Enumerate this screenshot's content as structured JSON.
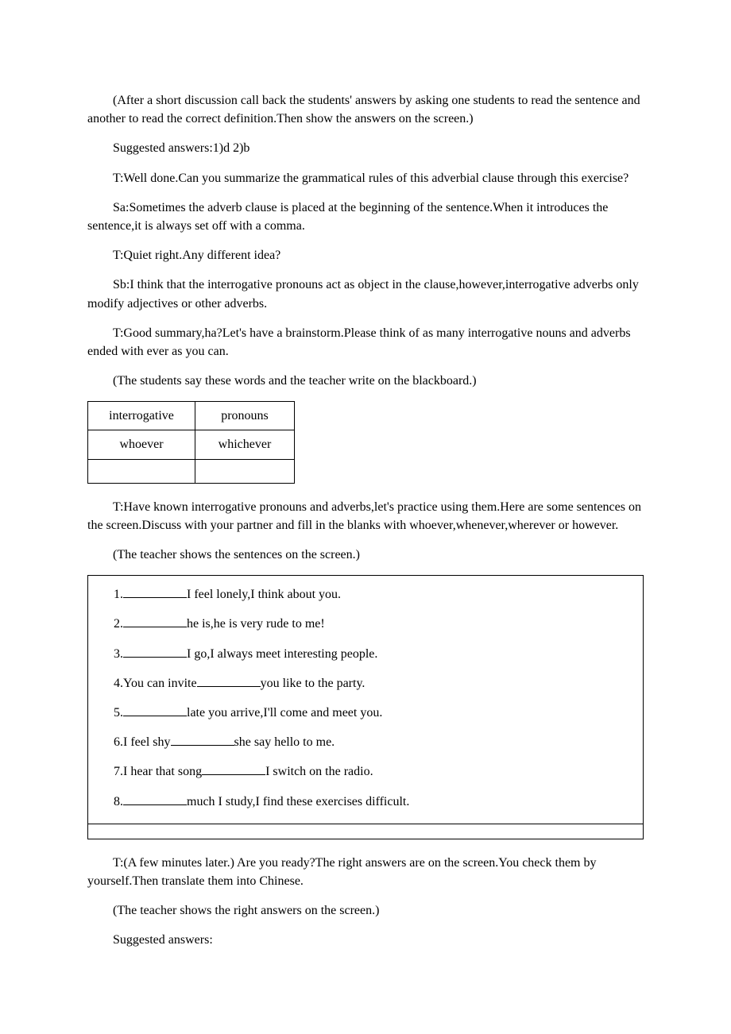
{
  "paragraphs": {
    "p1": "(After a short discussion call back the students' answers by asking one students to read the sentence and another to read the correct definition.Then show the answers on the screen.)",
    "p2": "Suggested answers:1)d    2)b",
    "p3": "T:Well done.Can you summarize the grammatical rules of this adverbial clause through this exercise?",
    "p4": "Sa:Sometimes the adverb clause is placed at the beginning of the sentence.When it introduces the sentence,it is always set off with a comma.",
    "p5": "T:Quiet right.Any different idea?",
    "p6": "Sb:I think that the interrogative pronouns act as object in the clause,however,interrogative adverbs only modify adjectives or other adverbs.",
    "p7": "T:Good summary,ha?Let's have a brainstorm.Please think of as many interrogative nouns and adverbs ended with ever as you can.",
    "p8": "(The students say these words and the teacher write on the blackboard.)",
    "p9": "T:Have known interrogative pronouns and adverbs,let's practice using them.Here are some sentences on the screen.Discuss with your partner and fill in the blanks with whoever,whenever,wherever or however.",
    "p10": "(The teacher shows the sentences on the screen.)",
    "p11": "T:(A few minutes later.) Are you ready?The right answers are on the screen.You check them by yourself.Then translate them into Chinese.",
    "p12": "(The teacher shows the right answers on the screen.)",
    "p13": "Suggested answers:"
  },
  "table": {
    "row1": {
      "col1": "interrogative",
      "col2": "pronouns"
    },
    "row2": {
      "col1": "whoever",
      "col2": "whichever"
    },
    "row3": {
      "col1": "",
      "col2": ""
    }
  },
  "exercises": {
    "e1_pre": "1.",
    "e1_post": "I feel lonely,I think about you.",
    "e2_pre": "2.",
    "e2_post": "he is,he is very rude to me!",
    "e3_pre": "3.",
    "e3_post": "I go,I always meet interesting people.",
    "e4_pre": "4.You can invite",
    "e4_post": "you like to the party.",
    "e5_pre": "5.",
    "e5_post": "late you arrive,I'll come and meet you.",
    "e6_pre": "6.I feel shy",
    "e6_post": "she say hello to me.",
    "e7_pre": "7.I hear that song",
    "e7_post": "I switch on the radio.",
    "e8_pre": "8.",
    "e8_post": "much I study,I find these exercises difficult."
  }
}
